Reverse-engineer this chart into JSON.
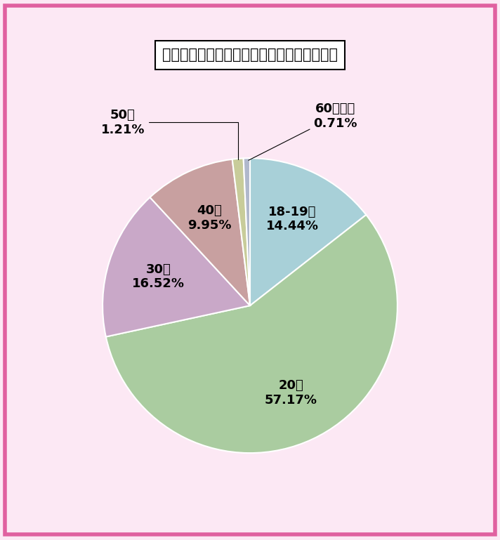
{
  "title": "滋賀県のワクワクメール：女性会員の年齢層",
  "labels_plain": [
    "18-19歳",
    "20代",
    "30代",
    "40代",
    "50代",
    "60代以上"
  ],
  "percentages": [
    "14.44%",
    "57.17%",
    "16.52%",
    "9.95%",
    "1.21%",
    "0.71%"
  ],
  "values": [
    14.44,
    57.17,
    16.52,
    9.95,
    1.21,
    0.71
  ],
  "colors": [
    "#a8d0d8",
    "#aacca0",
    "#c9a8c8",
    "#c8a0a0",
    "#c8cc9a",
    "#b0b8cc"
  ],
  "page_background": "#fce8f4",
  "chart_background": "#ffffff",
  "title_fontsize": 15,
  "label_fontsize": 13,
  "startangle": 90,
  "border_color": "#e060a0",
  "text_color": "#000000"
}
